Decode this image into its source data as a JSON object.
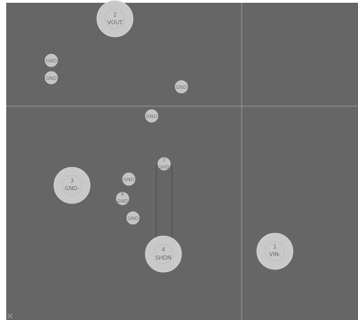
{
  "colors": {
    "canvas": "#666666",
    "pad": "#c9c9c9",
    "label": "#6a6a6a",
    "guide": "#9a9a9a",
    "trace": "#5b5b5b"
  },
  "pads": [
    {
      "number": "2",
      "name": "VOUT"
    },
    {
      "number": "3",
      "name": "GND-"
    },
    {
      "number": "4",
      "name": "SHDN"
    },
    {
      "number": "1",
      "name": "VIN-"
    }
  ],
  "vias": [
    {
      "number": "",
      "name": "GND"
    },
    {
      "number": "",
      "name": "GND"
    },
    {
      "number": "",
      "name": "GND"
    },
    {
      "number": "",
      "name": "GND"
    },
    {
      "number": "",
      "name": "GND"
    },
    {
      "number": "6",
      "name": "GND"
    },
    {
      "number": "",
      "name": "GND"
    },
    {
      "number": "7",
      "name": "SHD"
    }
  ],
  "origin_marker": {
    "icon": "origin-cross-icon"
  }
}
